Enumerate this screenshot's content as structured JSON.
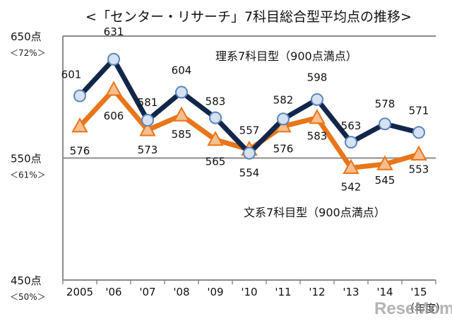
{
  "chart_data": {
    "type": "line",
    "title": "<「センター・リサーチ」7科目総合型平均点の推移>",
    "xlabel": "（年度）",
    "ylabel": "",
    "ylim": [
      450,
      650
    ],
    "grid": "horizontal line at 550",
    "categories": [
      "2005",
      "'06",
      "'07",
      "'08",
      "'09",
      "'10",
      "'11",
      "'12",
      "'13",
      "'14",
      "'15"
    ],
    "y_ticks": [
      {
        "value": 650,
        "label": "650点",
        "pct": "＜72%＞"
      },
      {
        "value": 550,
        "label": "550点",
        "pct": "＜61%＞"
      },
      {
        "value": 450,
        "label": "450点",
        "pct": "＜50%＞"
      }
    ],
    "series": [
      {
        "name": "理系7科目型（900点満点）",
        "color": "#12264a",
        "marker": "circle",
        "marker_fill": "#d6e2f2",
        "marker_stroke": "#5b86bd",
        "values": [
          601,
          631,
          581,
          604,
          583,
          554,
          582,
          598,
          563,
          578,
          571
        ],
        "labels": [
          "601",
          "631",
          "581",
          "604",
          "583",
          "554",
          "582",
          "598",
          "563",
          "578",
          "571"
        ]
      },
      {
        "name": "文系7科目型（900点満点）",
        "color": "#e8761a",
        "marker": "triangle",
        "marker_fill": "#f7be8e",
        "marker_stroke": "#e8761a",
        "values": [
          576,
          606,
          573,
          585,
          565,
          557,
          576,
          583,
          542,
          545,
          553
        ],
        "labels": [
          "576",
          "606",
          "573",
          "585",
          "565",
          "557",
          "576",
          "583",
          "542",
          "545",
          "553"
        ]
      }
    ],
    "legend": "inline labels (top-right for 理系, bottom-right for 文系)"
  },
  "watermark": "ReseMom"
}
